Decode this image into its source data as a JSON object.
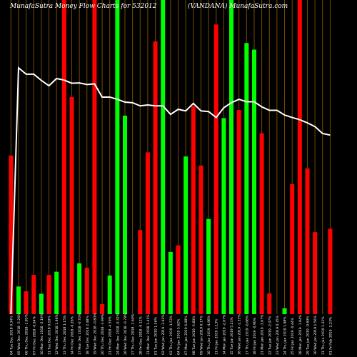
{
  "titles": {
    "left": "MunafaSutra  Money Flow  Charts for 532012",
    "right": "(VANDANA) MunafaSutra.com"
  },
  "colors": {
    "background": "#000000",
    "up": "#00ff00",
    "down": "#ff0000",
    "grid": "#7a4a00",
    "line": "#ffffff",
    "text": "#ffffff"
  },
  "chart_data": {
    "type": "bar",
    "title": "MunafaSutra  Money Flow  Charts for 532012 (VANDANA) MunafaSutra.com",
    "bar_scale": "relative money flow (0 = baseline, 100 = chart top)",
    "line_scale": "price line (0 = baseline, 100 = chart top)",
    "categories": [
      "01 Fri Feb 2019",
      "31 Thu Jan 2019",
      "30 Wed Jan 2019",
      "29 Tue Jan 2019",
      "28 Mon Jan 2019",
      "25 Fri Jan 2019",
      "24 Thu Jan 2019",
      "23 Wed Jan 2019",
      "22 Tue Jan 2019",
      "21 Mon Jan 2019",
      "18 Fri Jan 2019",
      "17 Thu Jan 2019",
      "16 Wed Jan 2019",
      "15 Tue Jan 2019",
      "14 Mon Jan 2019",
      "11 Fri Jan 2019",
      "10 Thu Jan 2019",
      "09 Wed Jan 2019",
      "08 Tue Jan 2019",
      "07 Mon Jan 2019",
      "04 Fri Jan 2019",
      "03 Thu Jan 2019",
      "02 Wed Jan 2019",
      "01 Tue Jan 2019",
      "31 Mon Dec 2018",
      "28 Fri Dec 2018",
      "27 Thu Dec 2018",
      "26 Wed Dec 2018",
      "24 Mon Dec 2018",
      "21 Fri Dec 2018",
      "20 Thu Dec 2018",
      "19 Wed Dec 2018",
      "18 Tue Dec 2018",
      "17 Mon Dec 2018",
      "14 Fri Dec 2018",
      "13 Thu Dec 2018",
      "12 Wed Dec 2018",
      "11 Tue Dec 2018",
      "10 Mon Dec 2018",
      "07 Fri Dec 2018",
      "06 Thu Dec 2018",
      "05 Wed Dec 2018",
      "04 Tue Dec 2018"
    ],
    "x_labels": [
      "04 Tue Dec 2018 0.34%",
      "05 Wed Dec 2018 -5.26%",
      "06 Thu Dec 2018 -1.85%",
      "07 Fri Dec 2018 -0.64%",
      "10 Mon Dec 2018 -2.19%",
      "11 Tue Dec 2018 0.10%",
      "12 Wed Dec 2018 1.96%",
      "13 Thu Dec 2018 1.15%",
      "14 Fri Dec 2018 -0.26%",
      "17 Mon Dec 2018 -0.70%",
      "18 Tue Dec 2018 2.48%",
      "19 Wed Dec 2018 -0.80%",
      "20 Thu Dec 2018 -3.99%",
      "21 Fri Dec 2018 -4.59%",
      "24 Mon Dec 2018 -0.32%",
      "26 Wed Dec 2018 -0.78%",
      "27 Thu Dec 2018 -1.60%",
      "28 Fri Dec 2018 -0.12%",
      "31 Mon Dec 2018 1.41%",
      "01 Tue Jan 2019 1.56%",
      "02 Wed Jan 2019 -3.62%",
      "03 Thu Jan 2019 -1.53%",
      "04 Fri Jan 2019 5.62%",
      "07 Mon Jan 2019 6.08%",
      "08 Tue Jan 2019 -5.80%",
      "09 Wed Jan 2019 0.17%",
      "10 Thu Jan 2019 -4.98%",
      "11 Fri Jan 2019 1.13%",
      "14 Mon Jan 2019 -2.07%",
      "15 Tue Jan 2019 5.21%",
      "16 Wed Jan 2019 -2.33%",
      "17 Thu Jan 2019 -0.68%",
      "18 Fri Jan 2019 -0.90%",
      "21 Mon Jan 2019 -3.67%",
      "22 Tue Jan 2019 -2.07%",
      "23 Wed Jan 2019 0.35%",
      "24 Thu Jan 2019 1.98%",
      "25 Fri Jan 2019 -0.44%",
      "28 Mon Jan 2019 -1.84%",
      "29 Tue Jan 2019 -0.60%",
      "30 Wed Jan 2019 1.56%",
      "31 Thu Jan 2019 1.31%",
      "01 Fri Feb 2019 -2.23%"
    ],
    "bar_values": [
      50.5,
      8.8,
      7.3,
      12.5,
      6.5,
      12.5,
      13.5,
      100,
      69.1,
      16.2,
      14.8,
      100,
      3.2,
      12.3,
      100,
      63.2,
      0,
      26.8,
      51.5,
      86.8,
      100,
      19.8,
      21.9,
      50.2,
      66.2,
      47.3,
      30.3,
      92.2,
      62.4,
      100,
      65.0,
      86.3,
      84.2,
      57.6,
      6.6,
      0,
      1.9,
      41.4,
      100,
      46.4,
      26.1,
      0,
      27.2
    ],
    "bar_colors": [
      "red",
      "green",
      "red",
      "red",
      "green",
      "red",
      "green",
      "red",
      "red",
      "green",
      "red",
      "red",
      "red",
      "green",
      "green",
      "green",
      "red",
      "red",
      "red",
      "red",
      "green",
      "green",
      "red",
      "green",
      "red",
      "red",
      "green",
      "red",
      "green",
      "green",
      "red",
      "green",
      "green",
      "red",
      "red",
      "red",
      "green",
      "red",
      "red",
      "red",
      "red",
      "red",
      "red"
    ],
    "line_values": [
      0,
      78.4,
      76.4,
      76.4,
      74.4,
      72.7,
      75.0,
      74.5,
      73.5,
      73.6,
      73.1,
      73.3,
      69.1,
      69.1,
      68.4,
      67.5,
      67.3,
      66.3,
      66.6,
      66.3,
      66.3,
      63.6,
      65.2,
      64.7,
      67.1,
      64.7,
      64.5,
      62.6,
      65.7,
      67.3,
      68.4,
      67.6,
      67.6,
      66.0,
      64.9,
      64.9,
      63.4,
      62.6,
      61.9,
      60.9,
      59.7,
      57.5,
      57.0
    ],
    "ylim": [
      0,
      100
    ],
    "grid": true,
    "legend": "none"
  }
}
